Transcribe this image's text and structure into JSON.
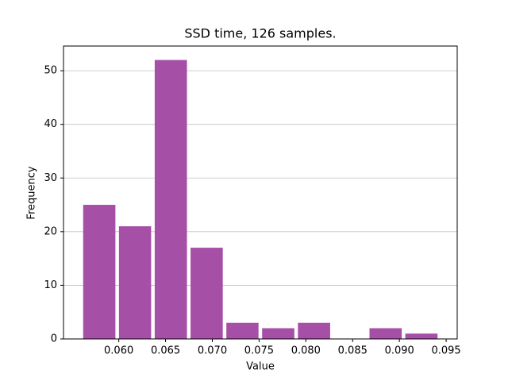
{
  "chart_data": {
    "type": "histogram",
    "title": "SSD time, 126 samples.",
    "x_label": "Value",
    "y_label": "Frequency",
    "bins": [
      0.056,
      0.05983,
      0.06365,
      0.06748,
      0.07131,
      0.07513,
      0.07896,
      0.08279,
      0.08661,
      0.09044,
      0.09427
    ],
    "counts": [
      25,
      21,
      52,
      17,
      3,
      2,
      3,
      0,
      2,
      1
    ],
    "color": "#a64fa7",
    "rwidth": 0.9,
    "xlim": [
      0.05409,
      0.09618
    ],
    "xticks": [
      {
        "value": 0.06,
        "label": "0.060"
      },
      {
        "value": 0.065,
        "label": "0.065"
      },
      {
        "value": 0.07,
        "label": "0.070"
      },
      {
        "value": 0.075,
        "label": "0.075"
      },
      {
        "value": 0.08,
        "label": "0.080"
      },
      {
        "value": 0.085,
        "label": "0.085"
      },
      {
        "value": 0.09,
        "label": "0.090"
      },
      {
        "value": 0.095,
        "label": "0.095"
      }
    ],
    "ylim": [
      0,
      54.6
    ],
    "yticks": [
      0,
      10,
      20,
      30,
      40,
      50
    ],
    "grid": true
  }
}
